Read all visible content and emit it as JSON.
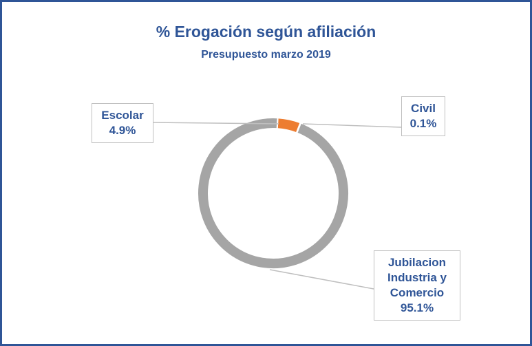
{
  "chart_data": {
    "type": "donut",
    "title": "% Erogación según afiliación",
    "subtitle": "Presupuesto marzo 2019",
    "categories": [
      "Escolar",
      "Civil",
      "Jubilacion Industria y Comercio"
    ],
    "values": [
      4.9,
      0.1,
      95.1
    ],
    "value_labels": [
      "4.9%",
      "0.1%",
      "95.1%"
    ],
    "colors": [
      "#ed7d31",
      "#5a5a5a",
      "#a5a5a5"
    ]
  }
}
